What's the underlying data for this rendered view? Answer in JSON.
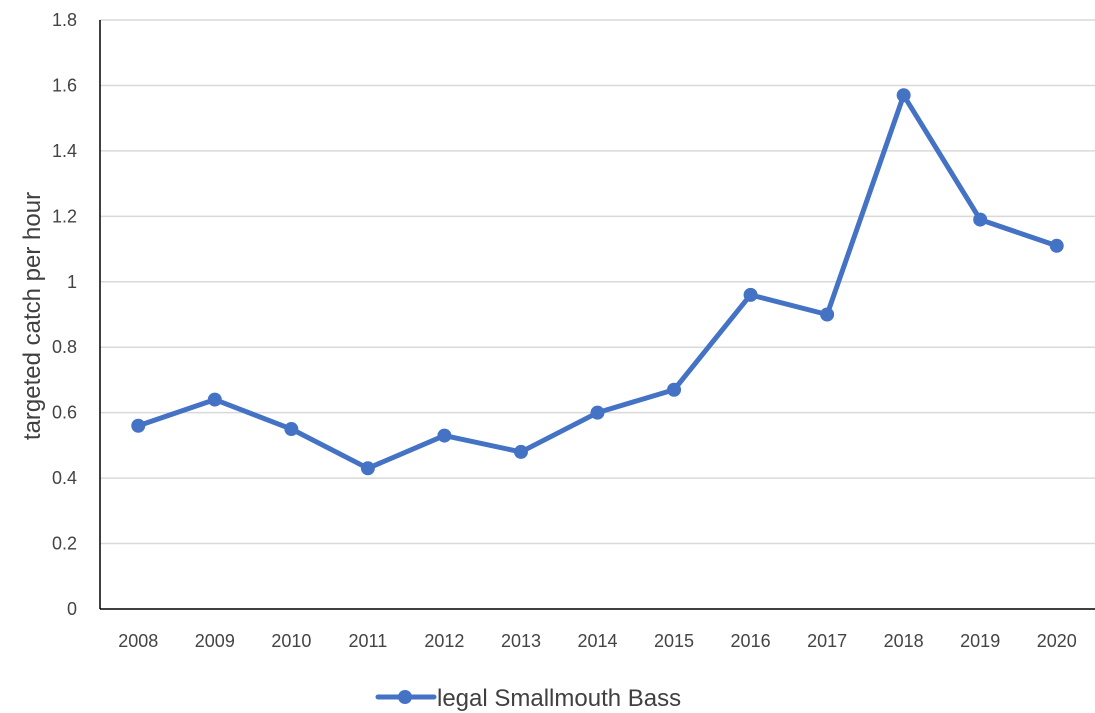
{
  "chart_data": {
    "type": "line",
    "title": "",
    "xlabel": "",
    "ylabel": "targeted catch per hour",
    "ylim": [
      0,
      1.8
    ],
    "yticks": [
      0,
      0.2,
      0.4,
      0.6,
      0.8,
      1,
      1.2,
      1.4,
      1.6,
      1.8
    ],
    "categories": [
      "2008",
      "2009",
      "2010",
      "2011",
      "2012",
      "2013",
      "2014",
      "2015",
      "2016",
      "2017",
      "2018",
      "2019",
      "2020"
    ],
    "series": [
      {
        "name": "legal Smallmouth Bass",
        "color": "#4472c4",
        "values": [
          0.56,
          0.64,
          0.55,
          0.43,
          0.53,
          0.48,
          0.6,
          0.67,
          0.96,
          0.9,
          1.57,
          1.19,
          1.11
        ]
      }
    ],
    "grid": true,
    "legend_position": "bottom"
  }
}
